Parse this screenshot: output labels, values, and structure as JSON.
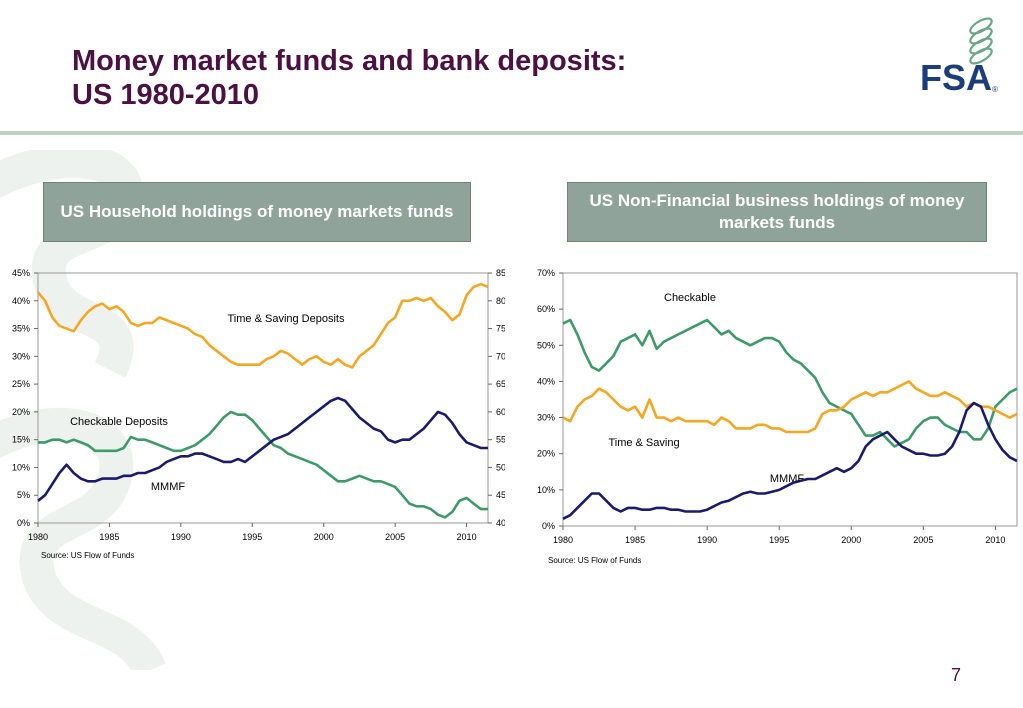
{
  "header": {
    "title_line1": "Money market funds and bank deposits:",
    "title_line2": "US 1980-2010",
    "logo_text": "FSA",
    "logo_mark": "®"
  },
  "colors": {
    "title": "#4a1142",
    "box_bg": "#8fa39a",
    "rule": "#bfcfc4",
    "orange": "#f5a623",
    "green": "#3f9a6a",
    "navy": "#1a1a6e"
  },
  "page_number": "7",
  "chart_data": [
    {
      "type": "line",
      "title": "US Household holdings of money markets funds",
      "source": "Source: US Flow of Funds",
      "x_ticks": [
        "1980",
        "1985",
        "1990",
        "1995",
        "2000",
        "2005",
        "2010"
      ],
      "xlim": [
        1980,
        2011.5
      ],
      "left_axis": {
        "ticks": [
          "0%",
          "5%",
          "10%",
          "15%",
          "20%",
          "25%",
          "30%",
          "35%",
          "40%",
          "45%"
        ],
        "ylim": [
          0,
          45
        ]
      },
      "right_axis": {
        "ticks": [
          "40%",
          "45%",
          "50%",
          "55%",
          "60%",
          "65%",
          "70%",
          "75%",
          "80%",
          "85%"
        ],
        "ylim": [
          40,
          85
        ]
      },
      "series": [
        {
          "name": "Time & Saving Deposits",
          "axis": "right",
          "color": "#f5a623",
          "x": [
            1980,
            1980.5,
            1981,
            1981.5,
            1982,
            1982.5,
            1983,
            1983.5,
            1984,
            1984.5,
            1985,
            1985.5,
            1986,
            1986.5,
            1987,
            1987.5,
            1988,
            1988.5,
            1989,
            1989.5,
            1990,
            1990.5,
            1991,
            1991.5,
            1992,
            1992.5,
            1993,
            1993.5,
            1994,
            1994.5,
            1995,
            1995.5,
            1996,
            1996.5,
            1997,
            1997.5,
            1998,
            1998.5,
            1999,
            1999.5,
            2000,
            2000.5,
            2001,
            2001.5,
            2002,
            2002.5,
            2003,
            2003.5,
            2004,
            2004.5,
            2005,
            2005.5,
            2006,
            2006.5,
            2007,
            2007.5,
            2008,
            2008.5,
            2009,
            2009.5,
            2010,
            2010.5,
            2011,
            2011.5
          ],
          "values": [
            81.5,
            80,
            77,
            75.5,
            75,
            74.5,
            76.5,
            78,
            79,
            79.5,
            78.5,
            79,
            78,
            76,
            75.5,
            76,
            76,
            77,
            76.5,
            76,
            75.5,
            75,
            74,
            73.5,
            72,
            71,
            70,
            69,
            68.5,
            68.5,
            68.5,
            68.5,
            69.5,
            70,
            71,
            70.5,
            69.5,
            68.5,
            69.5,
            70,
            69,
            68.5,
            69.5,
            68.5,
            68,
            70,
            71,
            72,
            74,
            76,
            77,
            80,
            80,
            80.5,
            80,
            80.5,
            79,
            78,
            76.5,
            77.5,
            81,
            82.5,
            83,
            82.5
          ]
        },
        {
          "name": "Checkable Deposits",
          "axis": "left",
          "color": "#3f9a6a",
          "x": [
            1980,
            1980.5,
            1981,
            1981.5,
            1982,
            1982.5,
            1983,
            1983.5,
            1984,
            1984.5,
            1985,
            1985.5,
            1986,
            1986.5,
            1987,
            1987.5,
            1988,
            1988.5,
            1989,
            1989.5,
            1990,
            1990.5,
            1991,
            1991.5,
            1992,
            1992.5,
            1993,
            1993.5,
            1994,
            1994.5,
            1995,
            1995.5,
            1996,
            1996.5,
            1997,
            1997.5,
            1998,
            1998.5,
            1999,
            1999.5,
            2000,
            2000.5,
            2001,
            2001.5,
            2002,
            2002.5,
            2003,
            2003.5,
            2004,
            2004.5,
            2005,
            2005.5,
            2006,
            2006.5,
            2007,
            2007.5,
            2008,
            2008.5,
            2009,
            2009.5,
            2010,
            2010.5,
            2011,
            2011.5
          ],
          "values": [
            14.5,
            14.5,
            15,
            15,
            14.5,
            15,
            14.5,
            14,
            13,
            13,
            13,
            13,
            13.5,
            15.5,
            15,
            15,
            14.5,
            14,
            13.5,
            13,
            13,
            13.5,
            14,
            15,
            16,
            17.5,
            19,
            20,
            19.5,
            19.5,
            18.5,
            17,
            15.5,
            14,
            13.5,
            12.5,
            12,
            11.5,
            11,
            10.5,
            9.5,
            8.5,
            7.5,
            7.5,
            8,
            8.5,
            8,
            7.5,
            7.5,
            7,
            6.5,
            5,
            3.5,
            3,
            3,
            2.5,
            1.5,
            1,
            2,
            4,
            4.5,
            3.5,
            2.5,
            2.5
          ]
        },
        {
          "name": "MMMF",
          "axis": "left",
          "color": "#1a1a6e",
          "x": [
            1980,
            1980.5,
            1981,
            1981.5,
            1982,
            1982.5,
            1983,
            1983.5,
            1984,
            1984.5,
            1985,
            1985.5,
            1986,
            1986.5,
            1987,
            1987.5,
            1988,
            1988.5,
            1989,
            1989.5,
            1990,
            1990.5,
            1991,
            1991.5,
            1992,
            1992.5,
            1993,
            1993.5,
            1994,
            1994.5,
            1995,
            1995.5,
            1996,
            1996.5,
            1997,
            1997.5,
            1998,
            1998.5,
            1999,
            1999.5,
            2000,
            2000.5,
            2001,
            2001.5,
            2002,
            2002.5,
            2003,
            2003.5,
            2004,
            2004.5,
            2005,
            2005.5,
            2006,
            2006.5,
            2007,
            2007.5,
            2008,
            2008.5,
            2009,
            2009.5,
            2010,
            2010.5,
            2011,
            2011.5
          ],
          "values": [
            4,
            5,
            7,
            9,
            10.5,
            9,
            8,
            7.5,
            7.5,
            8,
            8,
            8,
            8.5,
            8.5,
            9,
            9,
            9.5,
            10,
            11,
            11.5,
            12,
            12,
            12.5,
            12.5,
            12,
            11.5,
            11,
            11,
            11.5,
            11,
            12,
            13,
            14,
            15,
            15.5,
            16,
            17,
            18,
            19,
            20,
            21,
            22,
            22.5,
            22,
            20.5,
            19,
            18,
            17,
            16.5,
            15,
            14.5,
            15,
            15,
            16,
            17,
            18.5,
            20,
            19.5,
            18,
            16,
            14.5,
            14,
            13.5,
            13.5
          ]
        }
      ],
      "annotations": [
        "Time & Saving Deposits",
        "Checkable Deposits",
        "MMMF"
      ]
    },
    {
      "type": "line",
      "title": "US Non-Financial business holdings of money markets funds",
      "source": "Source: US Flow of Funds",
      "x_ticks": [
        "1980",
        "1985",
        "1990",
        "1995",
        "2000",
        "2005",
        "2010"
      ],
      "xlim": [
        1980,
        2011.5
      ],
      "left_axis": {
        "ticks": [
          "0%",
          "10%",
          "20%",
          "30%",
          "40%",
          "50%",
          "60%",
          "70%"
        ],
        "ylim": [
          0,
          70
        ]
      },
      "series": [
        {
          "name": "Checkable",
          "color": "#3f9a6a",
          "x": [
            1980,
            1980.5,
            1981,
            1981.5,
            1982,
            1982.5,
            1983,
            1983.5,
            1984,
            1984.5,
            1985,
            1985.5,
            1986,
            1986.5,
            1987,
            1987.5,
            1988,
            1988.5,
            1989,
            1989.5,
            1990,
            1990.5,
            1991,
            1991.5,
            1992,
            1992.5,
            1993,
            1993.5,
            1994,
            1994.5,
            1995,
            1995.5,
            1996,
            1996.5,
            1997,
            1997.5,
            1998,
            1998.5,
            1999,
            1999.5,
            2000,
            2000.5,
            2001,
            2001.5,
            2002,
            2002.5,
            2003,
            2003.5,
            2004,
            2004.5,
            2005,
            2005.5,
            2006,
            2006.5,
            2007,
            2007.5,
            2008,
            2008.5,
            2009,
            2009.5,
            2010,
            2010.5,
            2011,
            2011.5
          ],
          "values": [
            56,
            57,
            53,
            48,
            44,
            43,
            45,
            47,
            51,
            52,
            53,
            50,
            54,
            49,
            51,
            52,
            53,
            54,
            55,
            56,
            57,
            55,
            53,
            54,
            52,
            51,
            50,
            51,
            52,
            52,
            51,
            48,
            46,
            45,
            43,
            41,
            37,
            34,
            33,
            32,
            31,
            28,
            25,
            25,
            26,
            24,
            22,
            23,
            24,
            27,
            29,
            30,
            30,
            28,
            27,
            26,
            26,
            24,
            24,
            27,
            33,
            35,
            37,
            38
          ]
        },
        {
          "name": "Time & Saving",
          "color": "#f5a623",
          "x": [
            1980,
            1980.5,
            1981,
            1981.5,
            1982,
            1982.5,
            1983,
            1983.5,
            1984,
            1984.5,
            1985,
            1985.5,
            1986,
            1986.5,
            1987,
            1987.5,
            1988,
            1988.5,
            1989,
            1989.5,
            1990,
            1990.5,
            1991,
            1991.5,
            1992,
            1992.5,
            1993,
            1993.5,
            1994,
            1994.5,
            1995,
            1995.5,
            1996,
            1996.5,
            1997,
            1997.5,
            1998,
            1998.5,
            1999,
            1999.5,
            2000,
            2000.5,
            2001,
            2001.5,
            2002,
            2002.5,
            2003,
            2003.5,
            2004,
            2004.5,
            2005,
            2005.5,
            2006,
            2006.5,
            2007,
            2007.5,
            2008,
            2008.5,
            2009,
            2009.5,
            2010,
            2010.5,
            2011,
            2011.5
          ],
          "values": [
            30,
            29,
            33,
            35,
            36,
            38,
            37,
            35,
            33,
            32,
            33,
            30,
            35,
            30,
            30,
            29,
            30,
            29,
            29,
            29,
            29,
            28,
            30,
            29,
            27,
            27,
            27,
            28,
            28,
            27,
            27,
            26,
            26,
            26,
            26,
            27,
            31,
            32,
            32,
            33,
            35,
            36,
            37,
            36,
            37,
            37,
            38,
            39,
            40,
            38,
            37,
            36,
            36,
            37,
            36,
            35,
            33,
            34,
            33,
            33,
            32,
            31,
            30,
            31
          ]
        },
        {
          "name": "MMMF",
          "color": "#1a1a6e",
          "x": [
            1980,
            1980.5,
            1981,
            1981.5,
            1982,
            1982.5,
            1983,
            1983.5,
            1984,
            1984.5,
            1985,
            1985.5,
            1986,
            1986.5,
            1987,
            1987.5,
            1988,
            1988.5,
            1989,
            1989.5,
            1990,
            1990.5,
            1991,
            1991.5,
            1992,
            1992.5,
            1993,
            1993.5,
            1994,
            1994.5,
            1995,
            1995.5,
            1996,
            1996.5,
            1997,
            1997.5,
            1998,
            1998.5,
            1999,
            1999.5,
            2000,
            2000.5,
            2001,
            2001.5,
            2002,
            2002.5,
            2003,
            2003.5,
            2004,
            2004.5,
            2005,
            2005.5,
            2006,
            2006.5,
            2007,
            2007.5,
            2008,
            2008.5,
            2009,
            2009.5,
            2010,
            2010.5,
            2011,
            2011.5
          ],
          "values": [
            2,
            3,
            5,
            7,
            9,
            9,
            7,
            5,
            4,
            5,
            5,
            4.5,
            4.5,
            5,
            5,
            4.5,
            4.5,
            4,
            4,
            4,
            4.5,
            5.5,
            6.5,
            7,
            8,
            9,
            9.5,
            9,
            9,
            9.5,
            10,
            11,
            12,
            12.5,
            13,
            13,
            14,
            15,
            16,
            15,
            16,
            18,
            22,
            24,
            25,
            26,
            24,
            22,
            21,
            20,
            20,
            19.5,
            19.5,
            20,
            22,
            26,
            32,
            34,
            33,
            28,
            24,
            21,
            19,
            18
          ]
        }
      ],
      "annotations": [
        "Checkable",
        "Time & Saving",
        "MMMF"
      ]
    }
  ]
}
